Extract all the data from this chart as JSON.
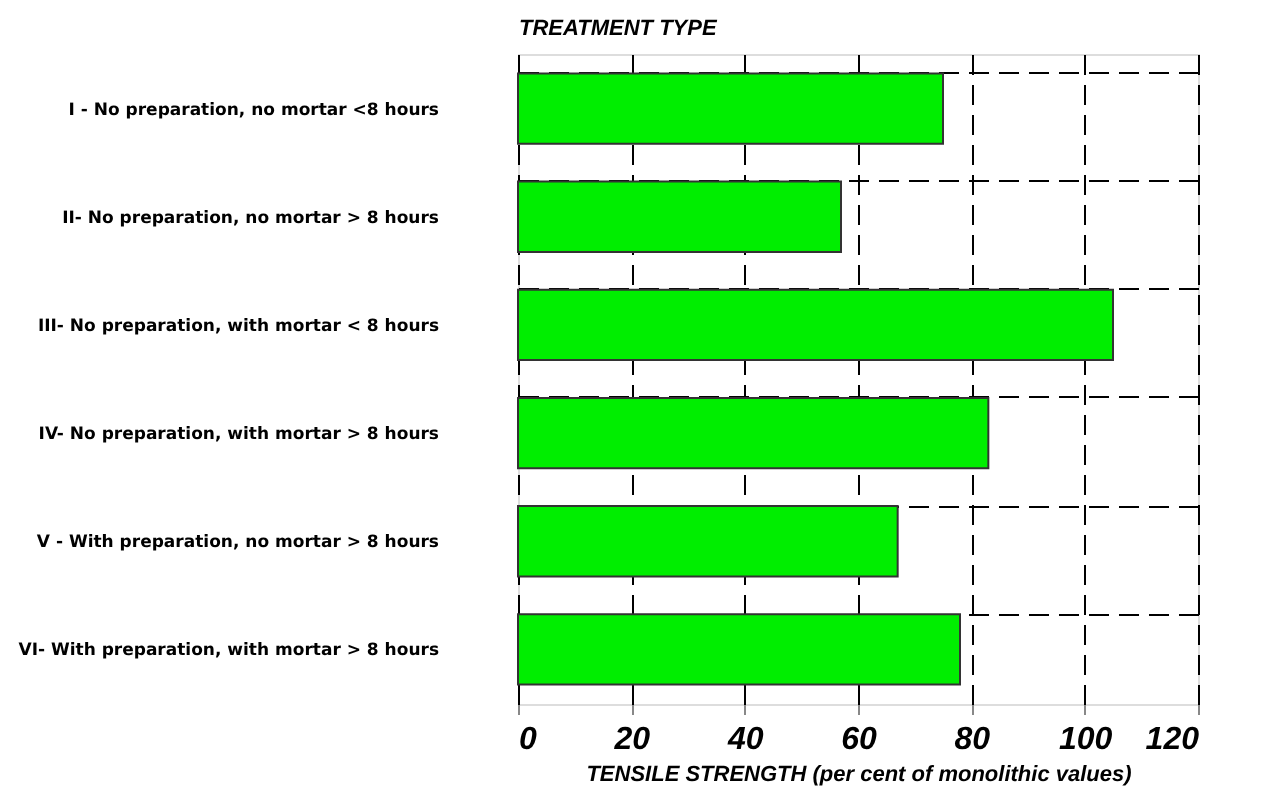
{
  "chart_data": {
    "type": "bar",
    "orientation": "horizontal",
    "ylabel": "TREATMENT TYPE",
    "xlabel": "TENSILE STRENGTH (per cent of monolithic values)",
    "categories": [
      "I -   No preparation, no mortar <8 hours",
      "II-   No preparation, no mortar > 8 hours",
      "III-  No preparation, with mortar < 8 hours",
      "IV-  No preparation, with mortar > 8 hours",
      "V -  With preparation, no mortar > 8 hours",
      "VI-  With preparation, with mortar > 8 hours"
    ],
    "values": [
      75,
      57,
      105,
      83,
      67,
      78
    ],
    "color": "#00ee00",
    "xlim": [
      0,
      120
    ],
    "xticks": [
      0,
      20,
      40,
      60,
      80,
      100,
      120
    ],
    "grid": true
  }
}
